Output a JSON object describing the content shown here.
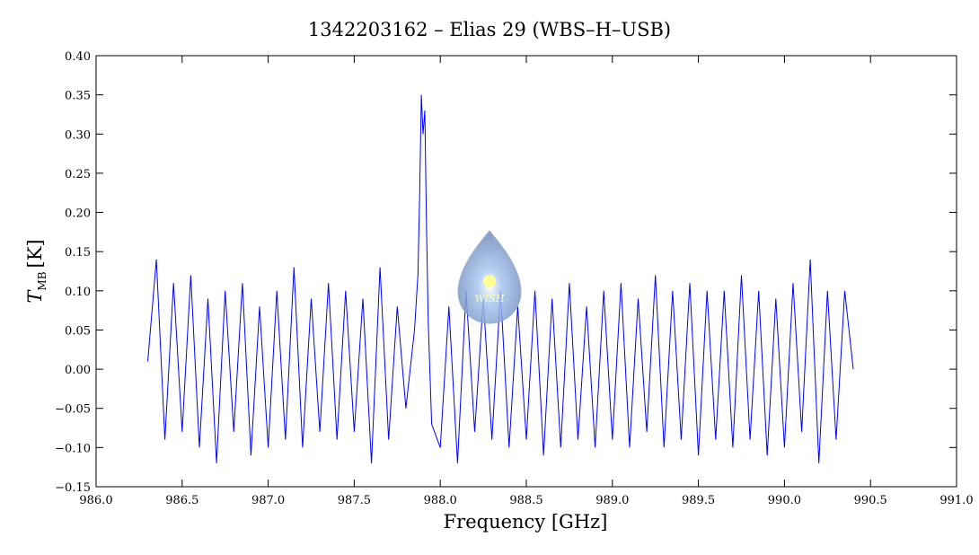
{
  "chart_data": {
    "type": "line",
    "title": "1342203162 – Elias 29 (WBS–H–USB)",
    "xlabel": "Frequency [GHz]",
    "ylabel": "T",
    "ylabel_sub": "MB",
    "ylabel_unit": "[K]",
    "logo_text": "WISH",
    "xlim": [
      986,
      991
    ],
    "xticks": [
      {
        "value": 986,
        "label": "986.0"
      },
      986.5,
      {
        "value": 987,
        "label": "987.0"
      },
      987.5,
      {
        "value": 988,
        "label": "988.0"
      },
      988.5,
      {
        "value": 989,
        "label": "989.0"
      },
      989.5,
      {
        "value": 990,
        "label": "990.0"
      },
      990.5,
      {
        "value": 991,
        "label": "991.0"
      }
    ],
    "ylim": [
      -0.15,
      0.4
    ],
    "yticks": [
      {
        "value": -0.15,
        "label": "−0.15"
      },
      {
        "value": -0.1,
        "label": "−0.10"
      },
      {
        "value": -0.05,
        "label": "−0.05"
      },
      {
        "value": 0,
        "label": "0.00"
      },
      0.05,
      {
        "value": 0.1,
        "label": "0.10"
      },
      0.15,
      {
        "value": 0.2,
        "label": "0.20"
      },
      0.25,
      {
        "value": 0.3,
        "label": "0.30"
      },
      0.35,
      {
        "value": 0.4,
        "label": "0.40"
      }
    ],
    "x": [
      986.3,
      986.35,
      986.4,
      986.45,
      986.5,
      986.55,
      986.6,
      986.65,
      986.7,
      986.75,
      986.8,
      986.85,
      986.9,
      986.95,
      987.0,
      987.05,
      987.1,
      987.15,
      987.2,
      987.25,
      987.3,
      987.35,
      987.4,
      987.45,
      987.5,
      987.55,
      987.6,
      987.65,
      987.7,
      987.75,
      987.8,
      987.85,
      987.87,
      987.88,
      987.89,
      987.9,
      987.91,
      987.92,
      987.93,
      987.95,
      988.0,
      988.05,
      988.1,
      988.15,
      988.2,
      988.25,
      988.3,
      988.35,
      988.4,
      988.45,
      988.5,
      988.55,
      988.6,
      988.65,
      988.7,
      988.75,
      988.8,
      988.85,
      988.9,
      988.95,
      989.0,
      989.05,
      989.1,
      989.15,
      989.2,
      989.25,
      989.3,
      989.35,
      989.4,
      989.45,
      989.5,
      989.55,
      989.6,
      989.65,
      989.7,
      989.75,
      989.8,
      989.85,
      989.9,
      989.95,
      990.0,
      990.05,
      990.1,
      990.15,
      990.2,
      990.25,
      990.3,
      990.35,
      990.4
    ],
    "series": [
      {
        "color": "#0000ff",
        "values": [
          0.01,
          0.14,
          -0.09,
          0.11,
          -0.08,
          0.12,
          -0.1,
          0.09,
          -0.12,
          0.1,
          -0.08,
          0.11,
          -0.11,
          0.08,
          -0.1,
          0.1,
          -0.09,
          0.13,
          -0.1,
          0.09,
          -0.08,
          0.11,
          -0.09,
          0.1,
          -0.08,
          0.09,
          -0.12,
          0.13,
          -0.09,
          0.08,
          -0.05,
          0.05,
          0.12,
          0.22,
          0.35,
          0.3,
          0.33,
          0.18,
          0.06,
          -0.07,
          -0.1,
          0.08,
          -0.12,
          0.1,
          -0.08,
          0.09,
          -0.09,
          0.1,
          -0.1,
          0.08,
          -0.09,
          0.1,
          -0.11,
          0.09,
          -0.1,
          0.11,
          -0.09,
          0.08,
          -0.1,
          0.1,
          -0.09,
          0.11,
          -0.1,
          0.09,
          -0.08,
          0.12,
          -0.1,
          0.1,
          -0.09,
          0.11,
          -0.11,
          0.1,
          -0.09,
          0.1,
          -0.1,
          0.12,
          -0.09,
          0.1,
          -0.11,
          0.09,
          -0.1,
          0.11,
          -0.08,
          0.14,
          -0.12,
          0.1,
          -0.09,
          0.1,
          0.0
        ]
      }
    ]
  }
}
